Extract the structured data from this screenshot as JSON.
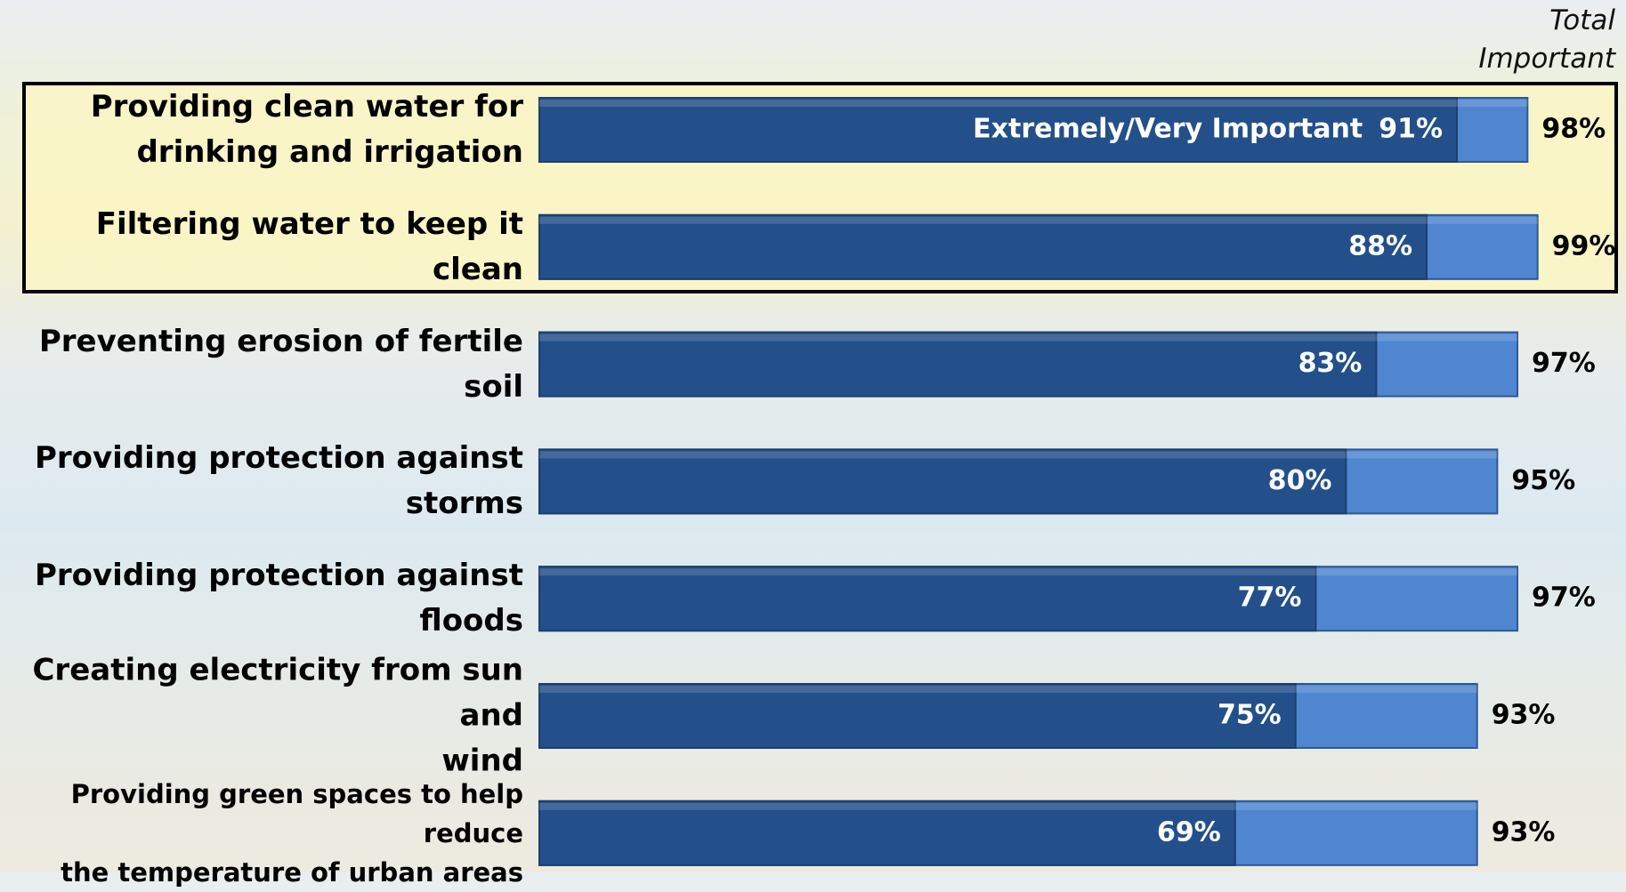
{
  "chart_data": {
    "type": "bar",
    "orientation": "horizontal",
    "categories": [
      "Providing clean water for\ndrinking and irrigation",
      "Filtering water to keep it clean",
      "Preventing erosion of fertile soil",
      "Providing protection against\nstorms",
      "Providing protection against\nfloods",
      "Creating electricity from sun and\nwind",
      "Providing green spaces to help reduce\nthe temperature of urban areas"
    ],
    "series": [
      {
        "name": "Total Important",
        "color": "#4f86cf",
        "values": [
          98,
          99,
          97,
          95,
          97,
          93,
          93
        ],
        "value_labels": [
          "98%",
          "99%",
          "97%",
          "95%",
          "97%",
          "93%",
          "93%"
        ]
      },
      {
        "name": "Extremely/Very Important",
        "color": "#23508a",
        "values": [
          91,
          88,
          83,
          80,
          77,
          75,
          69
        ],
        "value_labels": [
          "91%",
          "88%",
          "83%",
          "80%",
          "77%",
          "75%",
          "69%"
        ]
      }
    ],
    "xlim": [
      0,
      100
    ]
  }
}
